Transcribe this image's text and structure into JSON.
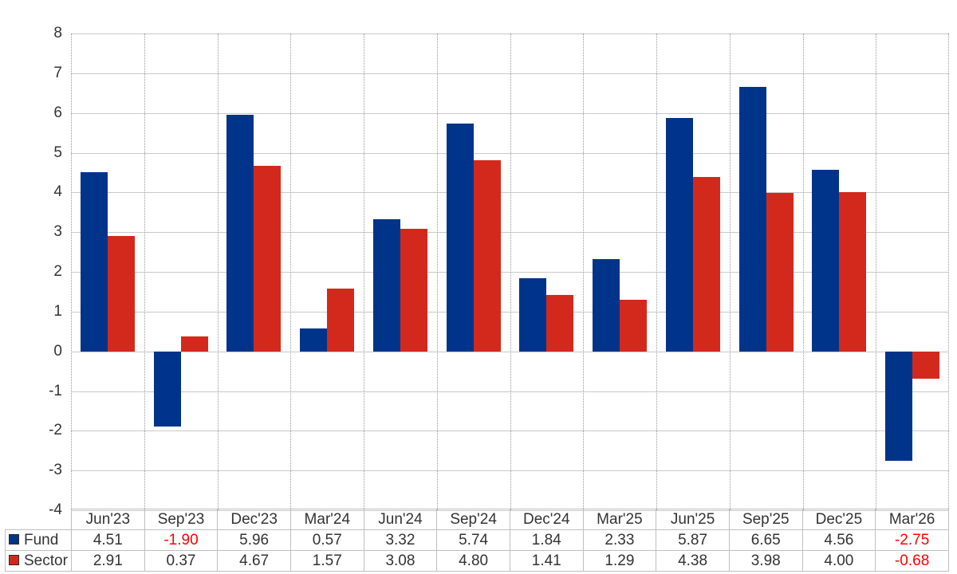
{
  "chart_data": {
    "type": "bar",
    "title": "",
    "xlabel": "",
    "ylabel": "",
    "categories": [
      "Jun'23",
      "Sep'23",
      "Dec'23",
      "Mar'24",
      "Jun'24",
      "Sep'24",
      "Dec'24",
      "Mar'25",
      "Jun'25",
      "Sep'25",
      "Dec'25",
      "Mar'26"
    ],
    "series": [
      {
        "name": "Fund",
        "color": "#00348A",
        "values": [
          4.51,
          -1.9,
          5.96,
          0.57,
          3.32,
          5.74,
          1.84,
          2.33,
          5.87,
          6.65,
          4.56,
          -2.75
        ]
      },
      {
        "name": "Sector",
        "color": "#D3291D",
        "values": [
          2.91,
          0.37,
          4.67,
          1.57,
          3.08,
          4.8,
          1.41,
          1.29,
          4.38,
          3.98,
          4.0,
          -0.68
        ]
      }
    ],
    "ylim": [
      -4,
      8
    ],
    "ytick_step": 1,
    "value_format_decimals": 2,
    "legend_position": "table-left-column",
    "grid": {
      "horizontal": "solid",
      "vertical": "dotted"
    }
  },
  "colors": {
    "fund_bar": "#00348A",
    "sector_bar": "#D3291D",
    "negative_text": "#FF0000",
    "axis_text": "#333333",
    "gridline_horizontal": "#C9C9C9",
    "gridline_vertical": "#9A9A9A",
    "table_border": "#BFBFBF"
  }
}
